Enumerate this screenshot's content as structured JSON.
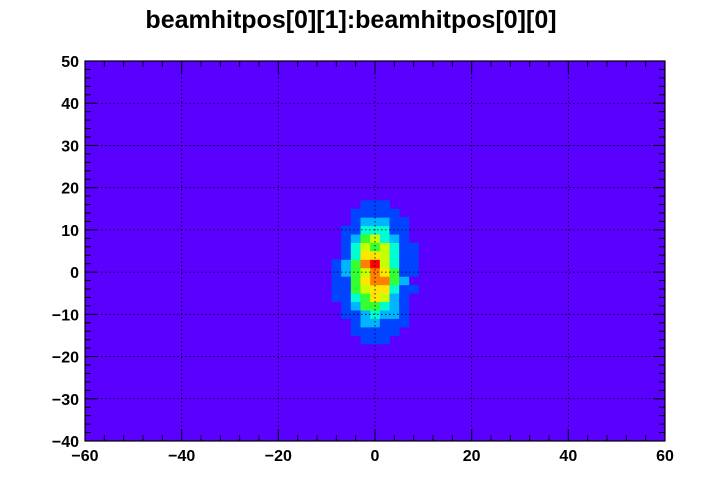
{
  "chart_data": {
    "type": "heatmap",
    "title": "beamhitpos[0][1]:beamhitpos[0][0]",
    "xlabel": "",
    "ylabel": "",
    "xlim": [
      -60,
      60
    ],
    "ylim": [
      -40,
      50
    ],
    "x_ticks": [
      -60,
      -40,
      -20,
      0,
      20,
      40,
      60
    ],
    "x_tick_labels": [
      "−60",
      "−40",
      "−20",
      "0",
      "20",
      "40",
      "60"
    ],
    "y_ticks": [
      -40,
      -30,
      -20,
      -10,
      0,
      10,
      20,
      30,
      40,
      50
    ],
    "y_tick_labels": [
      "−40",
      "−30",
      "−20",
      "−10",
      "0",
      "10",
      "20",
      "30",
      "40",
      "50"
    ],
    "grid": true,
    "background_color": "#5a00ff",
    "colormap": [
      "#5a00ff",
      "#0044ff",
      "#00b4ff",
      "#00ffd0",
      "#33ff33",
      "#c8ff00",
      "#ffe600",
      "#ff8000",
      "#ff0000"
    ],
    "blob": {
      "center": [
        0,
        0
      ],
      "sigma_x": 3.6,
      "sigma_y": 7.5,
      "extent_x": [
        -11,
        11
      ],
      "extent_y": [
        -21,
        20
      ],
      "peak": [
        0,
        2
      ]
    }
  }
}
